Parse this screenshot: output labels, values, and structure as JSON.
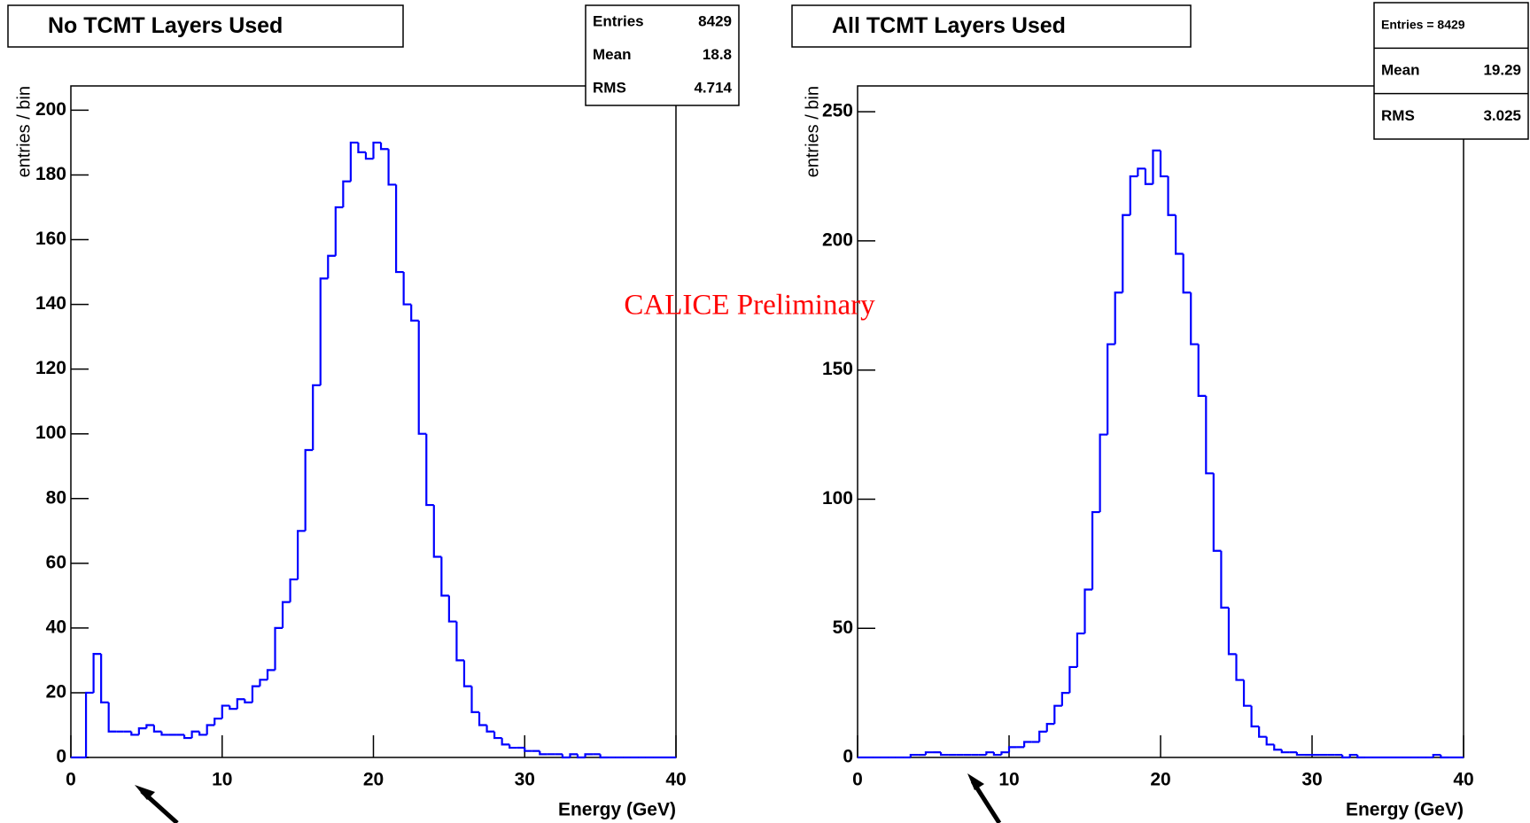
{
  "annotation": "CALICE Preliminary",
  "chart_data": [
    {
      "type": "histogram",
      "title": "No TCMT Layers Used",
      "x_label": "Energy (GeV)",
      "y_label": "entries / bin",
      "color": "#0000ff",
      "stats": [
        {
          "label": "Entries",
          "value": "8429"
        },
        {
          "label": "Mean",
          "value": "18.8"
        },
        {
          "label": "RMS",
          "value": "4.714"
        }
      ],
      "bins": [
        0,
        0.5,
        1,
        1.5,
        2,
        2.5,
        3,
        3.5,
        4,
        4.5,
        5,
        5.5,
        6,
        6.5,
        7,
        7.5,
        8,
        8.5,
        9,
        9.5,
        10,
        10.5,
        11,
        11.5,
        12,
        12.5,
        13,
        13.5,
        14,
        14.5,
        15,
        15.5,
        16,
        16.5,
        17,
        17.5,
        18,
        18.5,
        19,
        19.5,
        20,
        20.5,
        21,
        21.5,
        22,
        22.5,
        23,
        23.5,
        24,
        24.5,
        25,
        25.5,
        26,
        26.5,
        27,
        27.5,
        28,
        28.5,
        29,
        29.5,
        30,
        30.5,
        31,
        31.5,
        32,
        32.5,
        33,
        33.5,
        34,
        34.5,
        35,
        35.5,
        36,
        36.5,
        37,
        37.5,
        38,
        38.5,
        39,
        39.5,
        40
      ],
      "values": [
        0,
        0,
        20,
        32,
        17,
        8,
        8,
        8,
        7,
        9,
        10,
        8,
        7,
        7,
        7,
        6,
        8,
        7,
        10,
        12,
        16,
        15,
        18,
        17,
        22,
        24,
        27,
        40,
        48,
        55,
        70,
        95,
        115,
        148,
        155,
        170,
        178,
        190,
        187,
        185,
        190,
        188,
        177,
        150,
        140,
        135,
        100,
        78,
        62,
        50,
        42,
        30,
        22,
        14,
        10,
        8,
        6,
        4,
        3,
        3,
        2,
        2,
        1,
        1,
        1,
        0,
        1,
        0,
        1,
        1,
        0,
        0,
        0,
        0,
        0,
        0,
        0,
        0,
        0,
        0
      ],
      "xlim": [
        0,
        40
      ],
      "xticks": [
        0,
        10,
        20,
        30,
        40
      ],
      "ylim": [
        0,
        207.5
      ],
      "yticks": [
        0,
        20,
        40,
        60,
        80,
        100,
        120,
        140,
        160,
        180,
        200
      ]
    },
    {
      "type": "histogram",
      "title": "All TCMT Layers Used",
      "x_label": "Energy (GeV)",
      "y_label": "entries / bin",
      "color": "#0000ff",
      "stats": [
        {
          "label": "Entries = 8429"
        },
        {
          "label": "Mean",
          "value": "19.29"
        },
        {
          "label": "RMS",
          "value": "3.025"
        }
      ],
      "bins": [
        0,
        0.5,
        1,
        1.5,
        2,
        2.5,
        3,
        3.5,
        4,
        4.5,
        5,
        5.5,
        6,
        6.5,
        7,
        7.5,
        8,
        8.5,
        9,
        9.5,
        10,
        10.5,
        11,
        11.5,
        12,
        12.5,
        13,
        13.5,
        14,
        14.5,
        15,
        15.5,
        16,
        16.5,
        17,
        17.5,
        18,
        18.5,
        19,
        19.5,
        20,
        20.5,
        21,
        21.5,
        22,
        22.5,
        23,
        23.5,
        24,
        24.5,
        25,
        25.5,
        26,
        26.5,
        27,
        27.5,
        28,
        28.5,
        29,
        29.5,
        30,
        30.5,
        31,
        31.5,
        32,
        32.5,
        33,
        33.5,
        34,
        34.5,
        35,
        35.5,
        36,
        36.5,
        37,
        37.5,
        38,
        38.5,
        39,
        39.5,
        40
      ],
      "values": [
        0,
        0,
        0,
        0,
        0,
        0,
        0,
        1,
        1,
        2,
        2,
        1,
        1,
        1,
        1,
        1,
        1,
        2,
        1,
        2,
        4,
        4,
        6,
        6,
        10,
        13,
        20,
        25,
        35,
        48,
        65,
        95,
        125,
        160,
        180,
        210,
        225,
        228,
        222,
        235,
        225,
        210,
        195,
        180,
        160,
        140,
        110,
        80,
        58,
        40,
        30,
        20,
        12,
        8,
        5,
        3,
        2,
        2,
        1,
        1,
        1,
        1,
        1,
        1,
        0,
        1,
        0,
        0,
        0,
        0,
        0,
        0,
        0,
        0,
        0,
        0,
        1,
        0,
        0,
        0
      ],
      "xlim": [
        0,
        40
      ],
      "xticks": [
        0,
        10,
        20,
        30,
        40
      ],
      "ylim": [
        0,
        260
      ],
      "yticks": [
        0,
        50,
        100,
        150,
        200,
        250
      ]
    }
  ]
}
